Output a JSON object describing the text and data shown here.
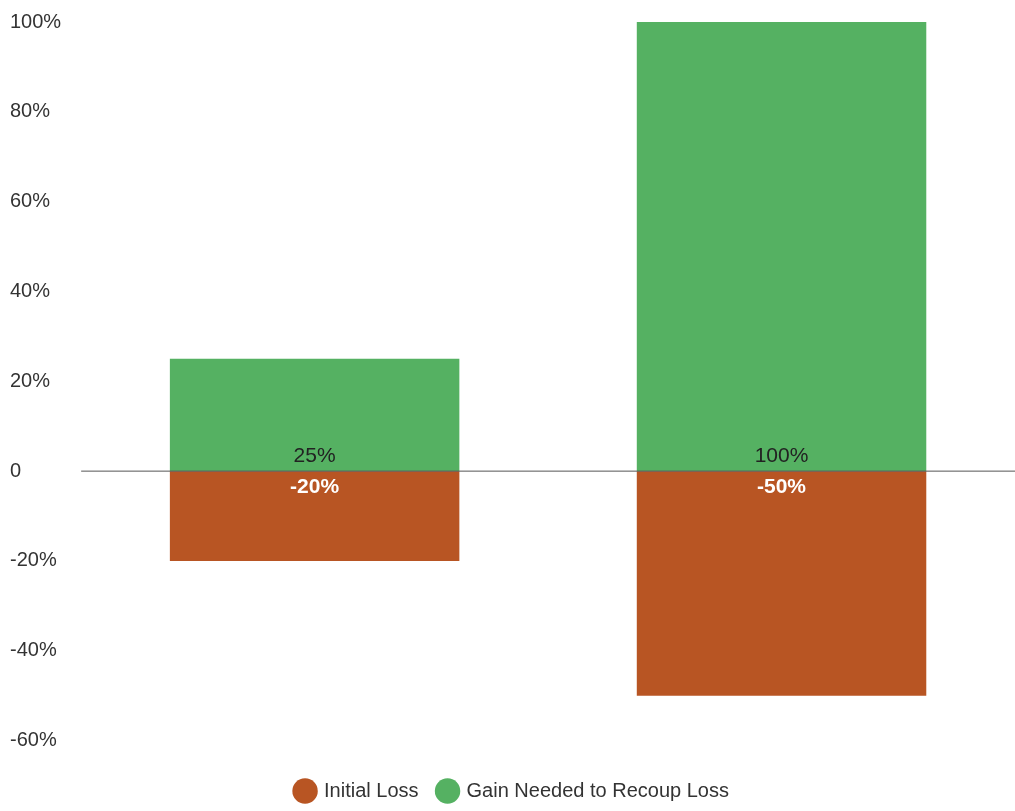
{
  "chart_data": {
    "type": "bar",
    "categories": [
      null,
      null
    ],
    "stacked": true,
    "series": [
      {
        "name": "Initial Loss",
        "color": "#b85523",
        "values": [
          -20,
          -50
        ],
        "value_labels": [
          "-20%",
          "-50%"
        ]
      },
      {
        "name": "Gain Needed to Recoup Loss",
        "color": "#55b162",
        "values": [
          25,
          100
        ],
        "value_labels": [
          "25%",
          "100%"
        ]
      }
    ],
    "ylim": [
      -60,
      100
    ],
    "yticks": [
      {
        "value": -60,
        "label": "-60%"
      },
      {
        "value": -40,
        "label": "-40%"
      },
      {
        "value": -20,
        "label": "-20%"
      },
      {
        "value": 0,
        "label": "0"
      },
      {
        "value": 20,
        "label": "20%"
      },
      {
        "value": 40,
        "label": "40%"
      },
      {
        "value": 60,
        "label": "60%"
      },
      {
        "value": 80,
        "label": "80%"
      },
      {
        "value": 100,
        "label": "100%"
      }
    ],
    "ref_lines": [
      {
        "axis": "y",
        "value": 0,
        "color": "#555555"
      }
    ],
    "legend": "bottom"
  }
}
